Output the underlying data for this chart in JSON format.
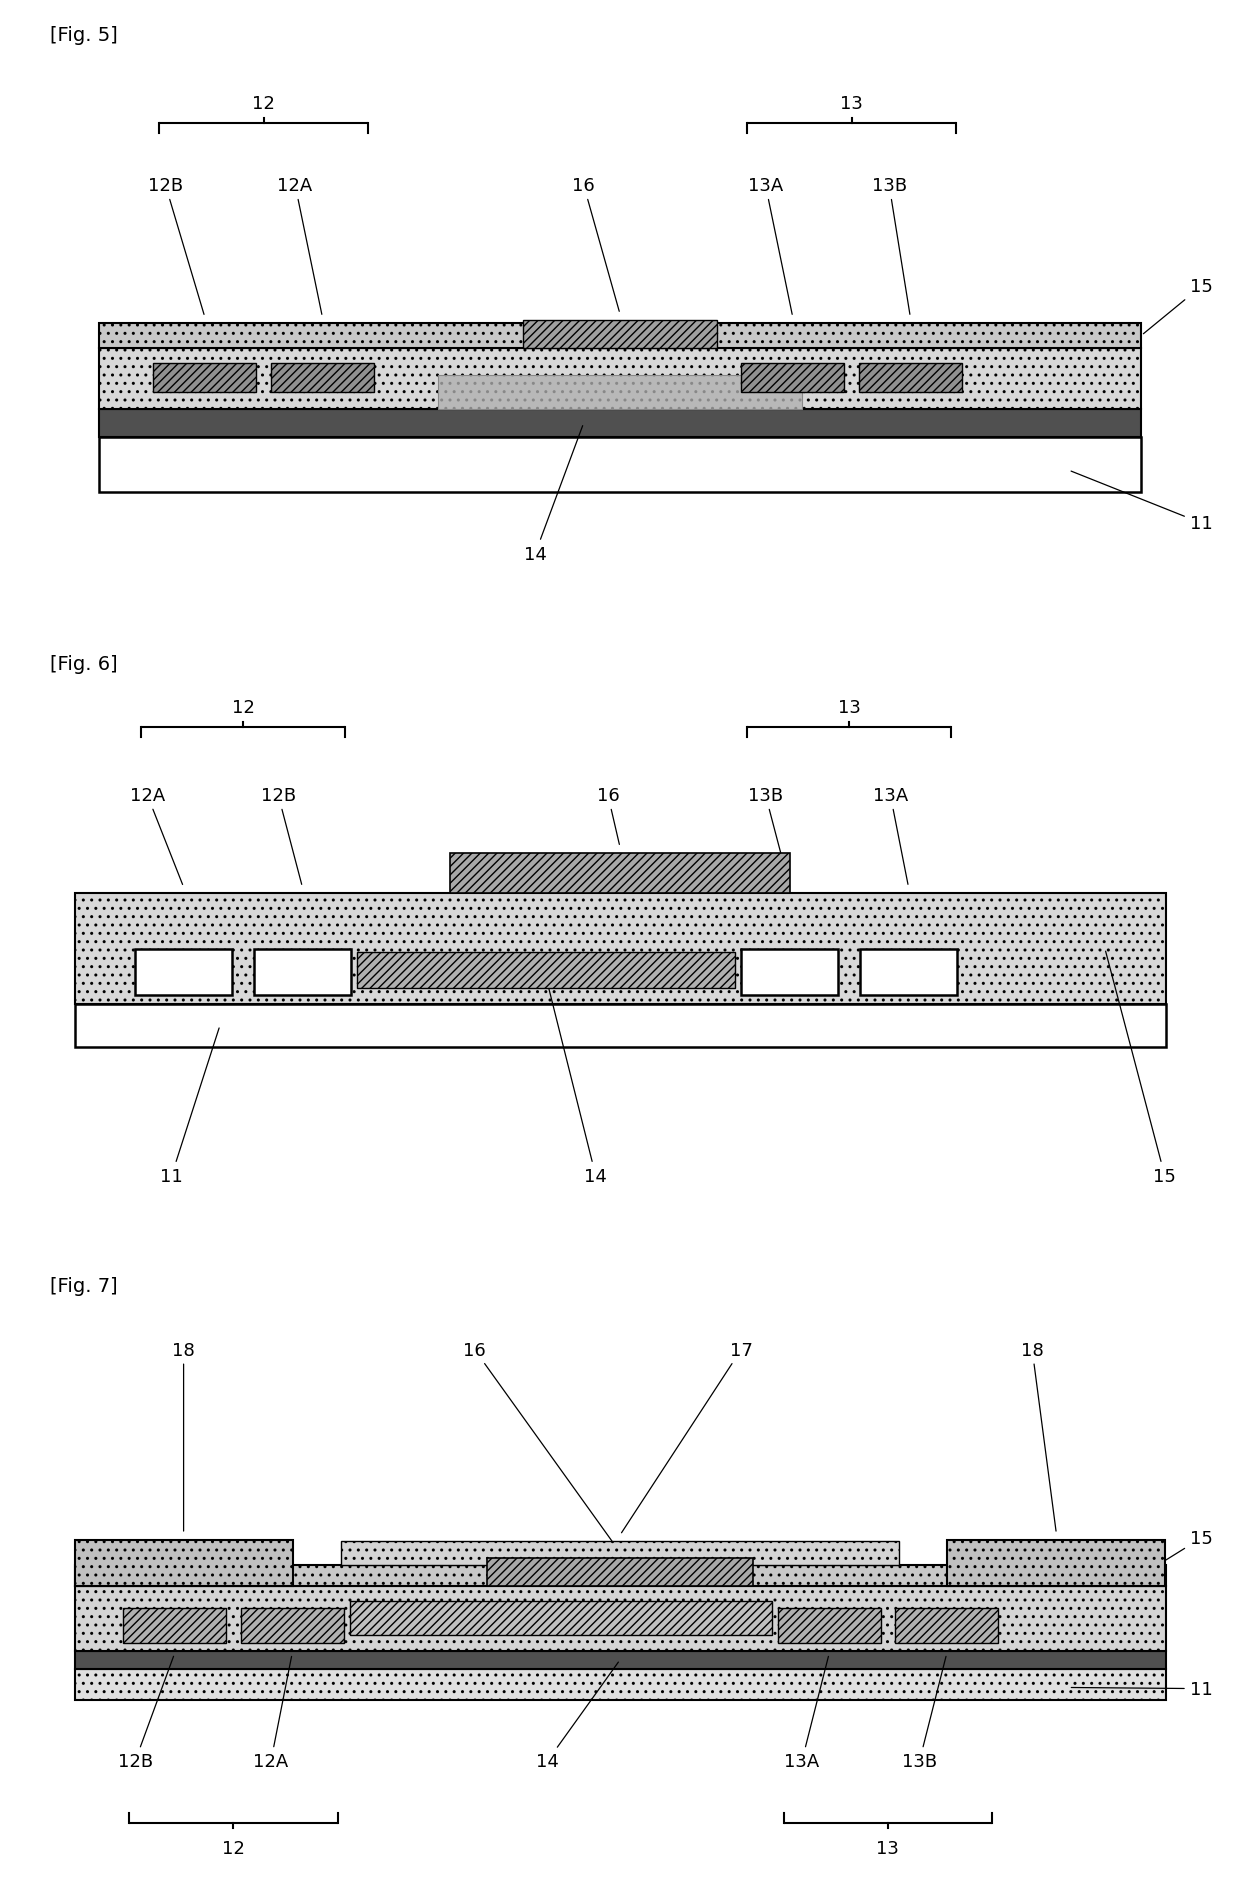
{
  "fig_labels": [
    "[Fig. 5]",
    "[Fig. 6]",
    "[Fig. 7]"
  ],
  "background_color": "#ffffff",
  "line_color": "#000000",
  "font_size_label": 14,
  "font_size_number": 13
}
